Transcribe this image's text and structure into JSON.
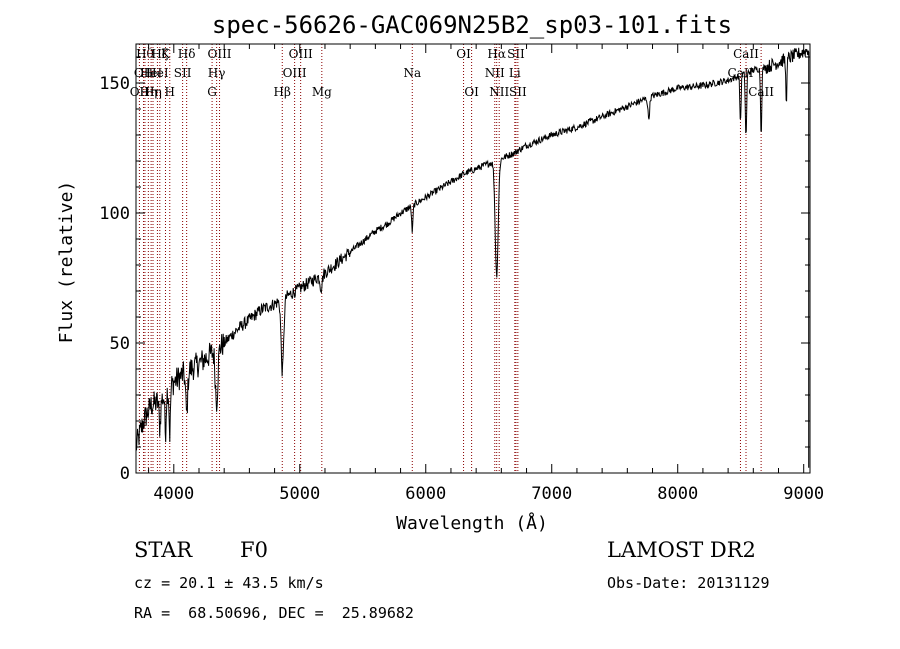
{
  "chart_data": {
    "type": "line",
    "title": "spec-56626-GAC069N25B2_sp03-101.fits",
    "xlabel": "Wavelength (Å)",
    "ylabel": "Flux (relative)",
    "xlim": [
      3700,
      9050
    ],
    "ylim": [
      0,
      165
    ],
    "xticks": [
      4000,
      5000,
      6000,
      7000,
      8000,
      9000
    ],
    "yticks": [
      0,
      50,
      100,
      150
    ],
    "grid": false,
    "series_color": "#000000",
    "line_color": "#8b0000",
    "continuum": [
      [
        3700,
        10
      ],
      [
        3760,
        20
      ],
      [
        3820,
        26
      ],
      [
        3900,
        28
      ],
      [
        4000,
        35
      ],
      [
        4100,
        39
      ],
      [
        4200,
        42
      ],
      [
        4300,
        46
      ],
      [
        4400,
        50
      ],
      [
        4500,
        55
      ],
      [
        4600,
        59
      ],
      [
        4700,
        63
      ],
      [
        4800,
        65
      ],
      [
        4900,
        68
      ],
      [
        5000,
        71
      ],
      [
        5100,
        74
      ],
      [
        5200,
        77
      ],
      [
        5300,
        81
      ],
      [
        5400,
        85
      ],
      [
        5500,
        89
      ],
      [
        5600,
        93
      ],
      [
        5700,
        96
      ],
      [
        5800,
        100
      ],
      [
        5900,
        103
      ],
      [
        6000,
        106
      ],
      [
        6100,
        109
      ],
      [
        6200,
        112
      ],
      [
        6300,
        115
      ],
      [
        6400,
        117
      ],
      [
        6500,
        119
      ],
      [
        6600,
        121
      ],
      [
        6700,
        123
      ],
      [
        6800,
        126
      ],
      [
        6900,
        128
      ],
      [
        7000,
        130
      ],
      [
        7200,
        133
      ],
      [
        7400,
        137
      ],
      [
        7600,
        141
      ],
      [
        7800,
        145
      ],
      [
        8000,
        148
      ],
      [
        8200,
        149
      ],
      [
        8400,
        151
      ],
      [
        8500,
        153
      ],
      [
        8600,
        155
      ],
      [
        8700,
        156
      ],
      [
        8800,
        158
      ],
      [
        8900,
        160
      ],
      [
        9000,
        162
      ],
      [
        9040,
        163
      ]
    ],
    "absorption": [
      {
        "x": 3889,
        "depth": 10,
        "width": 6
      },
      {
        "x": 3934,
        "depth": 15,
        "width": 5
      },
      {
        "x": 3968,
        "depth": 18,
        "width": 5
      },
      {
        "x": 4102,
        "depth": 16,
        "width": 8
      },
      {
        "x": 4340,
        "depth": 20,
        "width": 10
      },
      {
        "x": 4862,
        "depth": 28,
        "width": 10
      },
      {
        "x": 5170,
        "depth": 5,
        "width": 8
      },
      {
        "x": 5893,
        "depth": 10,
        "width": 5
      },
      {
        "x": 6563,
        "depth": 44,
        "width": 12
      },
      {
        "x": 7770,
        "depth": 8,
        "width": 7
      },
      {
        "x": 8498,
        "depth": 18,
        "width": 5
      },
      {
        "x": 8542,
        "depth": 25,
        "width": 5
      },
      {
        "x": 8662,
        "depth": 25,
        "width": 5
      },
      {
        "x": 8862,
        "depth": 15,
        "width": 5
      }
    ],
    "lines": [
      {
        "x": 3727,
        "label": "OII",
        "row": 3
      },
      {
        "x": 3760,
        "label": "OII",
        "row": 2
      },
      {
        "x": 3771,
        "label": "Hθ",
        "row": 1
      },
      {
        "x": 3798,
        "label": "Hη",
        "row": 3
      },
      {
        "x": 3820,
        "label": "HeI",
        "row": 2
      },
      {
        "x": 3835,
        "label": "Hη",
        "row": 3
      },
      {
        "x": 3870,
        "label": "HeI",
        "row": 2
      },
      {
        "x": 3889,
        "label": "Hζ",
        "row": 1
      },
      {
        "x": 3934,
        "label": "K",
        "row": 1
      },
      {
        "x": 3968,
        "label": "H",
        "row": 3
      },
      {
        "x": 4070,
        "label": "SII",
        "row": 2
      },
      {
        "x": 4102,
        "label": "Hδ",
        "row": 1
      },
      {
        "x": 4304,
        "label": "G",
        "row": 3
      },
      {
        "x": 4340,
        "label": "Hγ",
        "row": 2
      },
      {
        "x": 4363,
        "label": "OIII",
        "row": 1
      },
      {
        "x": 4861,
        "label": "Hβ",
        "row": 3
      },
      {
        "x": 4959,
        "label": "OIII",
        "row": 2
      },
      {
        "x": 5007,
        "label": "OIII",
        "row": 1
      },
      {
        "x": 5175,
        "label": "Mg",
        "row": 3
      },
      {
        "x": 5893,
        "label": "Na",
        "row": 2
      },
      {
        "x": 6300,
        "label": "OI",
        "row": 1
      },
      {
        "x": 6364,
        "label": "OI",
        "row": 3
      },
      {
        "x": 6548,
        "label": "NII",
        "row": 2
      },
      {
        "x": 6563,
        "label": "Hα",
        "row": 1
      },
      {
        "x": 6583,
        "label": "NII",
        "row": 3
      },
      {
        "x": 6707,
        "label": "Li",
        "row": 2
      },
      {
        "x": 6716,
        "label": "SII",
        "row": 1
      },
      {
        "x": 6731,
        "label": "SII",
        "row": 3
      },
      {
        "x": 8498,
        "label": "CaII",
        "row": 2
      },
      {
        "x": 8542,
        "label": "CaII",
        "row": 1
      },
      {
        "x": 8662,
        "label": "CaII",
        "row": 3
      }
    ]
  },
  "info": {
    "object_class": "STAR",
    "subclass": "F0",
    "survey": "LAMOST DR2",
    "velocity": "cz = 20.1 ± 43.5 km/s",
    "obs_date": "Obs-Date: 20131129",
    "coords": "RA =  68.50696, DEC =  25.89682"
  }
}
